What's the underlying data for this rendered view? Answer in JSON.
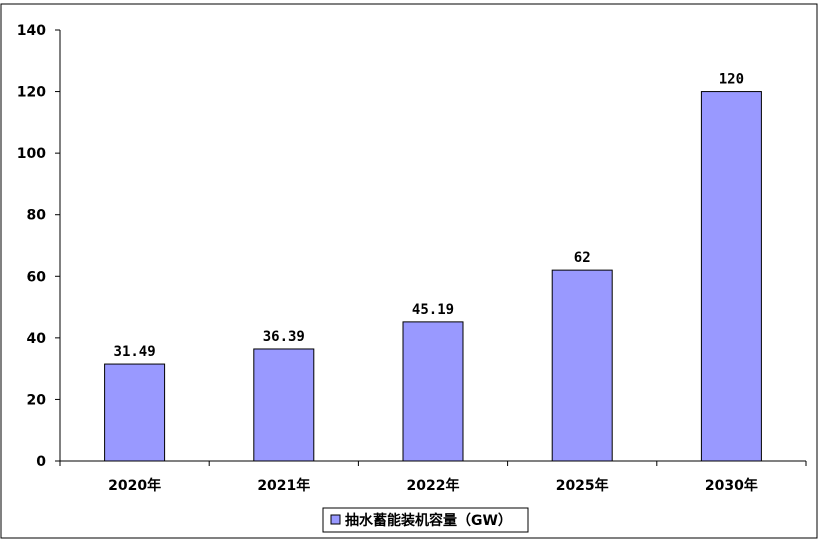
{
  "chart_data": {
    "type": "bar",
    "categories": [
      "2020年",
      "2021年",
      "2022年",
      "2025年",
      "2030年"
    ],
    "series": [
      {
        "name": "抽水蓄能装机容量（GW）",
        "values": [
          31.49,
          36.39,
          45.19,
          62,
          120
        ],
        "color": "#9999ff"
      }
    ],
    "data_labels": [
      "31.49",
      "36.39",
      "45.19",
      "62",
      "120"
    ],
    "ylim": [
      0,
      140
    ],
    "yticks": [
      0,
      20,
      40,
      60,
      80,
      100,
      120,
      140
    ],
    "ytick_labels": [
      "0",
      "20",
      "40",
      "60",
      "80",
      "100",
      "120",
      "140"
    ],
    "grid": false,
    "legend_position": "bottom",
    "bar_color": "#9999ff",
    "border_color": "#000000"
  }
}
